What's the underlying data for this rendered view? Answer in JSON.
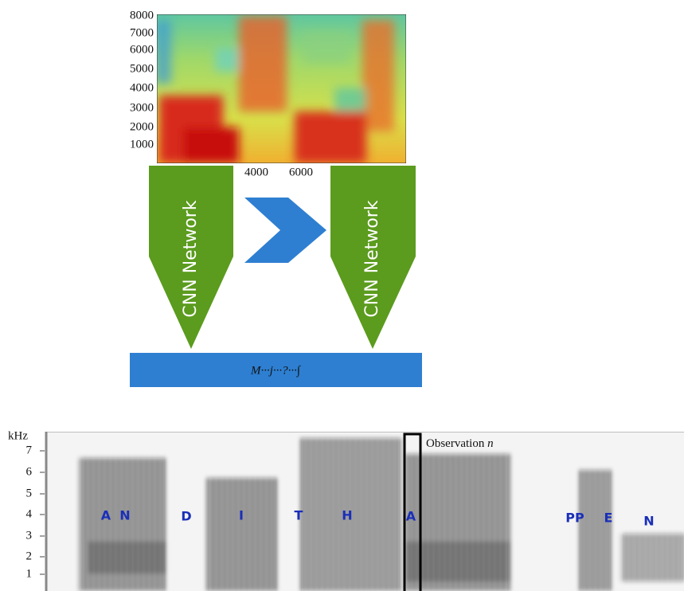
{
  "top_spectrogram": {
    "y_labels": [
      "8000",
      "7000",
      "6000",
      "5000",
      "4000",
      "3000",
      "2000",
      "1000"
    ],
    "x_labels": [
      "4000",
      "6000"
    ]
  },
  "cnn_blocks": [
    {
      "label": "CNN Network"
    },
    {
      "label": "CNN Network"
    }
  ],
  "output_bar": {
    "label": "M···j···?···∫"
  },
  "bottom_spectrogram": {
    "unit": "kHz",
    "y_labels": [
      "7",
      "6",
      "5",
      "4",
      "3",
      "2",
      "1"
    ],
    "annotation": "Observation",
    "annotation_var": "n",
    "phonemes": [
      "A",
      "N",
      "D",
      "I",
      "T",
      "H",
      "A",
      "PP",
      "E",
      "N"
    ]
  }
}
